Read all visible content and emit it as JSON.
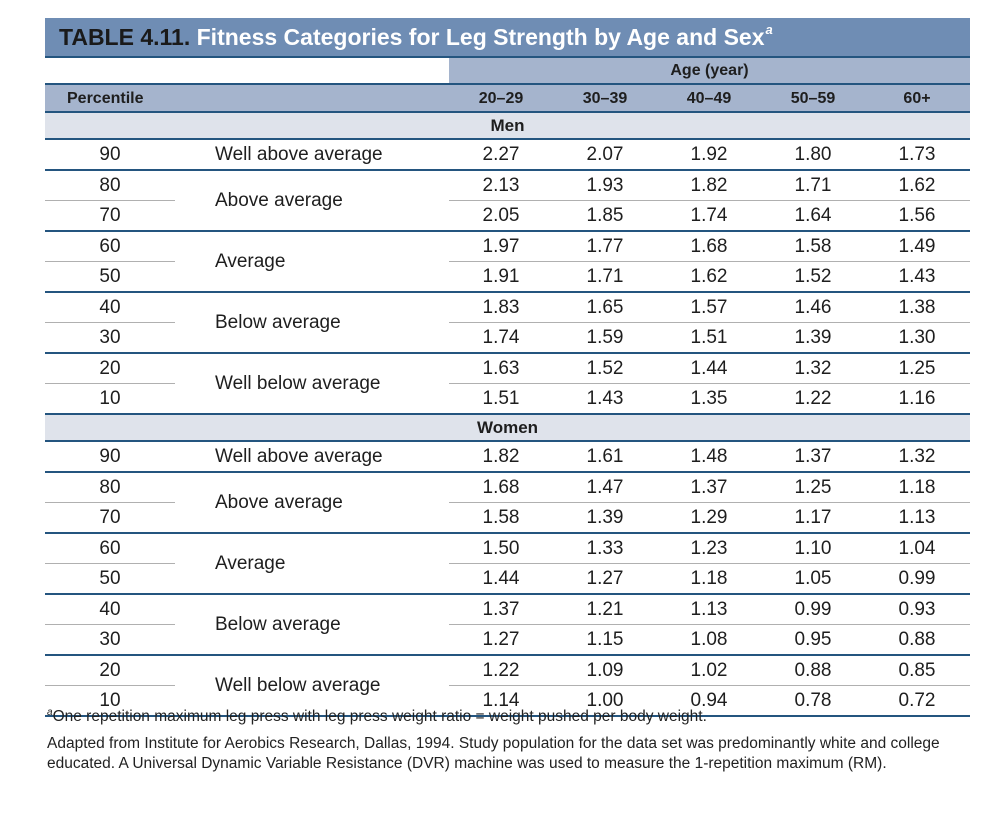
{
  "title": {
    "number": "TABLE 4.11.",
    "text": "Fitness Categories for Leg Strength by Age and Sex",
    "superscript": "a"
  },
  "header": {
    "age_label": "Age (year)",
    "percentile_label": "Percentile",
    "age_groups": [
      "20–29",
      "30–39",
      "40–49",
      "50–59",
      "60+"
    ]
  },
  "sections": [
    {
      "label": "Men",
      "groups": [
        {
          "category": "Well above average",
          "rows": [
            {
              "percentile": "90",
              "values": [
                "2.27",
                "2.07",
                "1.92",
                "1.80",
                "1.73"
              ]
            }
          ]
        },
        {
          "category": "Above average",
          "rows": [
            {
              "percentile": "80",
              "values": [
                "2.13",
                "1.93",
                "1.82",
                "1.71",
                "1.62"
              ]
            },
            {
              "percentile": "70",
              "values": [
                "2.05",
                "1.85",
                "1.74",
                "1.64",
                "1.56"
              ]
            }
          ]
        },
        {
          "category": "Average",
          "rows": [
            {
              "percentile": "60",
              "values": [
                "1.97",
                "1.77",
                "1.68",
                "1.58",
                "1.49"
              ]
            },
            {
              "percentile": "50",
              "values": [
                "1.91",
                "1.71",
                "1.62",
                "1.52",
                "1.43"
              ]
            }
          ]
        },
        {
          "category": "Below average",
          "rows": [
            {
              "percentile": "40",
              "values": [
                "1.83",
                "1.65",
                "1.57",
                "1.46",
                "1.38"
              ]
            },
            {
              "percentile": "30",
              "values": [
                "1.74",
                "1.59",
                "1.51",
                "1.39",
                "1.30"
              ]
            }
          ]
        },
        {
          "category": "Well below average",
          "rows": [
            {
              "percentile": "20",
              "values": [
                "1.63",
                "1.52",
                "1.44",
                "1.32",
                "1.25"
              ]
            },
            {
              "percentile": "10",
              "values": [
                "1.51",
                "1.43",
                "1.35",
                "1.22",
                "1.16"
              ]
            }
          ]
        }
      ]
    },
    {
      "label": "Women",
      "groups": [
        {
          "category": "Well above average",
          "rows": [
            {
              "percentile": "90",
              "values": [
                "1.82",
                "1.61",
                "1.48",
                "1.37",
                "1.32"
              ]
            }
          ]
        },
        {
          "category": "Above average",
          "rows": [
            {
              "percentile": "80",
              "values": [
                "1.68",
                "1.47",
                "1.37",
                "1.25",
                "1.18"
              ]
            },
            {
              "percentile": "70",
              "values": [
                "1.58",
                "1.39",
                "1.29",
                "1.17",
                "1.13"
              ]
            }
          ]
        },
        {
          "category": "Average",
          "rows": [
            {
              "percentile": "60",
              "values": [
                "1.50",
                "1.33",
                "1.23",
                "1.10",
                "1.04"
              ]
            },
            {
              "percentile": "50",
              "values": [
                "1.44",
                "1.27",
                "1.18",
                "1.05",
                "0.99"
              ]
            }
          ]
        },
        {
          "category": "Below average",
          "rows": [
            {
              "percentile": "40",
              "values": [
                "1.37",
                "1.21",
                "1.13",
                "0.99",
                "0.93"
              ]
            },
            {
              "percentile": "30",
              "values": [
                "1.27",
                "1.15",
                "1.08",
                "0.95",
                "0.88"
              ]
            }
          ]
        },
        {
          "category": "Well below average",
          "rows": [
            {
              "percentile": "20",
              "values": [
                "1.22",
                "1.09",
                "1.02",
                "0.88",
                "0.85"
              ]
            },
            {
              "percentile": "10",
              "values": [
                "1.14",
                "1.00",
                "0.94",
                "0.78",
                "0.72"
              ]
            }
          ]
        }
      ]
    }
  ],
  "footnote": {
    "marker": "a",
    "text": "One repetition maximum leg press with leg press weight ratio = weight pushed per body weight."
  },
  "source": "Adapted from Institute for Aerobics Research, Dallas, 1994. Study population for the data set was predominantly white and college educated. A Universal Dynamic Variable Resistance (DVR) machine was used to measure the 1-repetition maximum (RM).",
  "colors": {
    "title_bg": "#6f8db4",
    "header_bg": "#a5b4cd",
    "section_bg": "#dfe3eb",
    "rule": "#24557f"
  }
}
